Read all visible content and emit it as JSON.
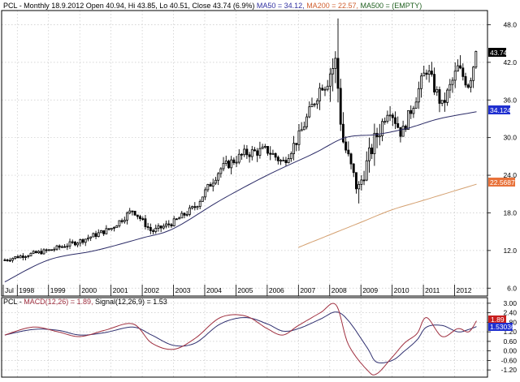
{
  "header": {
    "ticker": "PCL",
    "desc": " - Monthly 18.9.2012 Open 40.94, Hi 43.85, Lo 40.51, Close 43.74 (6.9%) ",
    "ma50": "MA50 = 34.12,",
    "ma200": " MA200 = 22.57,",
    "ma500": " MA500 = (EMPTY)"
  },
  "macd_header": {
    "ticker": "PCL",
    "sep": " - ",
    "macd": "MACD(12,26) = 1.89,",
    "signal": " Signal(12,26,9) = 1.53"
  },
  "colors": {
    "macd_line": "#a03040",
    "signal_line": "#303070",
    "ma50_line": "#2b2b66",
    "ma200_line": "#d4a070",
    "price_tag_bg": "#000000",
    "ma50_tag_bg": "#1f2fd0",
    "ma200_tag_bg": "#e8723a",
    "macd_tag_bg": "#c81e1e",
    "signal_tag_bg": "#1f2fd0",
    "ma50_text": "#3030a0",
    "ma200_text": "#d06030",
    "ma500_text": "#206020"
  },
  "tags": {
    "price": "43.74",
    "ma50": "34.124",
    "ma200": "22.5687",
    "macd": "1.89",
    "signal": "1.53036"
  },
  "chart_data": [
    {
      "type": "line",
      "name": "price-candles",
      "x_tick_labels": [
        "Jul",
        "1998",
        "1999",
        "2000",
        "2001",
        "2002",
        "2003",
        "2004",
        "2005",
        "2006",
        "2007",
        "2008",
        "2009",
        "2010",
        "2011",
        "2012"
      ],
      "y_ticks": [
        6.0,
        12.0,
        18.0,
        24.0,
        30.0,
        36.0,
        42.0,
        48.0
      ],
      "y_tick_labels": [
        "6.0",
        "12.0",
        "18.0",
        "24.0",
        "30.0",
        "36.0",
        "42.0",
        "48.0"
      ],
      "ylim": [
        5,
        50
      ],
      "xlim": [
        1997.55,
        2013.0
      ],
      "grid": true,
      "last_close": 43.74,
      "key_points": [
        {
          "x": 1997.6,
          "y": 10.5
        },
        {
          "x": 1998.0,
          "y": 11.0
        },
        {
          "x": 1999.0,
          "y": 12.0
        },
        {
          "x": 2000.0,
          "y": 13.5
        },
        {
          "x": 2001.0,
          "y": 15.5
        },
        {
          "x": 2001.7,
          "y": 18.5
        },
        {
          "x": 2002.3,
          "y": 15.0
        },
        {
          "x": 2003.0,
          "y": 16.5
        },
        {
          "x": 2003.7,
          "y": 19.0
        },
        {
          "x": 2004.5,
          "y": 25.0
        },
        {
          "x": 2005.3,
          "y": 27.5
        },
        {
          "x": 2006.0,
          "y": 28.0
        },
        {
          "x": 2006.5,
          "y": 26.0
        },
        {
          "x": 2007.0,
          "y": 30.0
        },
        {
          "x": 2007.7,
          "y": 38.0
        },
        {
          "x": 2008.2,
          "y": 42.0
        },
        {
          "x": 2008.4,
          "y": 30.0
        },
        {
          "x": 2008.9,
          "y": 21.5
        },
        {
          "x": 2009.4,
          "y": 29.0
        },
        {
          "x": 2009.9,
          "y": 35.0
        },
        {
          "x": 2010.3,
          "y": 30.5
        },
        {
          "x": 2010.8,
          "y": 37.0
        },
        {
          "x": 2011.1,
          "y": 41.0
        },
        {
          "x": 2011.6,
          "y": 35.0
        },
        {
          "x": 2012.1,
          "y": 41.0
        },
        {
          "x": 2012.45,
          "y": 38.5
        },
        {
          "x": 2012.7,
          "y": 43.74
        }
      ],
      "spikes": [
        {
          "x": 2008.3,
          "y": 49.0
        },
        {
          "x": 2008.9,
          "y": 19.5
        }
      ]
    },
    {
      "type": "line",
      "name": "ma50",
      "series": [
        {
          "name": "MA50",
          "points": [
            {
              "x": 1997.6,
              "y": 7.0
            },
            {
              "x": 1999.0,
              "y": 10.5
            },
            {
              "x": 2000.5,
              "y": 12.0
            },
            {
              "x": 2002.0,
              "y": 14.0
            },
            {
              "x": 2003.0,
              "y": 15.5
            },
            {
              "x": 2004.5,
              "y": 20.0
            },
            {
              "x": 2006.0,
              "y": 24.0
            },
            {
              "x": 2007.5,
              "y": 27.5
            },
            {
              "x": 2008.5,
              "y": 30.0
            },
            {
              "x": 2009.5,
              "y": 30.5
            },
            {
              "x": 2010.5,
              "y": 31.5
            },
            {
              "x": 2011.5,
              "y": 33.0
            },
            {
              "x": 2012.7,
              "y": 34.12
            }
          ]
        }
      ]
    },
    {
      "type": "line",
      "name": "ma200",
      "series": [
        {
          "name": "MA200",
          "points": [
            {
              "x": 2007.0,
              "y": 12.5
            },
            {
              "x": 2008.0,
              "y": 14.5
            },
            {
              "x": 2009.0,
              "y": 16.5
            },
            {
              "x": 2010.0,
              "y": 18.5
            },
            {
              "x": 2011.0,
              "y": 20.0
            },
            {
              "x": 2012.7,
              "y": 22.57
            }
          ]
        }
      ]
    },
    {
      "type": "line",
      "name": "macd-panel",
      "y_ticks": [
        -1.2,
        -0.6,
        0.0,
        0.6,
        1.2,
        1.8,
        2.4,
        3.0
      ],
      "y_tick_labels": [
        "-1.20",
        "-0.60",
        "0.00",
        "0.60",
        "1.20",
        "1.80",
        "2.40",
        "3.00"
      ],
      "ylim": [
        -1.55,
        3.25
      ],
      "series": [
        {
          "name": "MACD",
          "points": [
            {
              "x": 1997.6,
              "y": 1.0
            },
            {
              "x": 1998.5,
              "y": 1.5
            },
            {
              "x": 1999.3,
              "y": 1.2
            },
            {
              "x": 2000.0,
              "y": 0.9
            },
            {
              "x": 2000.8,
              "y": 1.3
            },
            {
              "x": 2001.7,
              "y": 1.7
            },
            {
              "x": 2002.3,
              "y": 0.5
            },
            {
              "x": 2003.0,
              "y": 0.1
            },
            {
              "x": 2003.7,
              "y": 0.8
            },
            {
              "x": 2004.5,
              "y": 2.1
            },
            {
              "x": 2005.3,
              "y": 2.2
            },
            {
              "x": 2006.0,
              "y": 1.4
            },
            {
              "x": 2006.5,
              "y": 1.0
            },
            {
              "x": 2007.0,
              "y": 1.6
            },
            {
              "x": 2007.7,
              "y": 2.4
            },
            {
              "x": 2008.2,
              "y": 2.9
            },
            {
              "x": 2008.6,
              "y": 0.4
            },
            {
              "x": 2009.2,
              "y": -1.2
            },
            {
              "x": 2009.5,
              "y": -1.45
            },
            {
              "x": 2010.0,
              "y": -0.4
            },
            {
              "x": 2010.4,
              "y": 0.5
            },
            {
              "x": 2010.8,
              "y": 1.1
            },
            {
              "x": 2011.1,
              "y": 2.1
            },
            {
              "x": 2011.6,
              "y": 0.9
            },
            {
              "x": 2012.1,
              "y": 1.4
            },
            {
              "x": 2012.45,
              "y": 1.2
            },
            {
              "x": 2012.7,
              "y": 1.89
            }
          ]
        },
        {
          "name": "Signal",
          "points": [
            {
              "x": 1997.6,
              "y": 1.0
            },
            {
              "x": 1998.5,
              "y": 1.35
            },
            {
              "x": 1999.3,
              "y": 1.3
            },
            {
              "x": 2000.0,
              "y": 1.0
            },
            {
              "x": 2000.8,
              "y": 1.15
            },
            {
              "x": 2001.7,
              "y": 1.5
            },
            {
              "x": 2002.3,
              "y": 1.0
            },
            {
              "x": 2003.0,
              "y": 0.35
            },
            {
              "x": 2003.7,
              "y": 0.5
            },
            {
              "x": 2004.5,
              "y": 1.7
            },
            {
              "x": 2005.3,
              "y": 2.1
            },
            {
              "x": 2006.0,
              "y": 1.7
            },
            {
              "x": 2006.5,
              "y": 1.25
            },
            {
              "x": 2007.0,
              "y": 1.4
            },
            {
              "x": 2007.7,
              "y": 2.0
            },
            {
              "x": 2008.2,
              "y": 2.45
            },
            {
              "x": 2008.6,
              "y": 1.9
            },
            {
              "x": 2009.2,
              "y": 0.2
            },
            {
              "x": 2009.5,
              "y": -0.7
            },
            {
              "x": 2010.0,
              "y": -0.6
            },
            {
              "x": 2010.4,
              "y": 0.0
            },
            {
              "x": 2010.8,
              "y": 0.7
            },
            {
              "x": 2011.1,
              "y": 1.5
            },
            {
              "x": 2011.6,
              "y": 1.6
            },
            {
              "x": 2012.1,
              "y": 1.2
            },
            {
              "x": 2012.45,
              "y": 1.35
            },
            {
              "x": 2012.7,
              "y": 1.53
            }
          ]
        }
      ]
    }
  ]
}
